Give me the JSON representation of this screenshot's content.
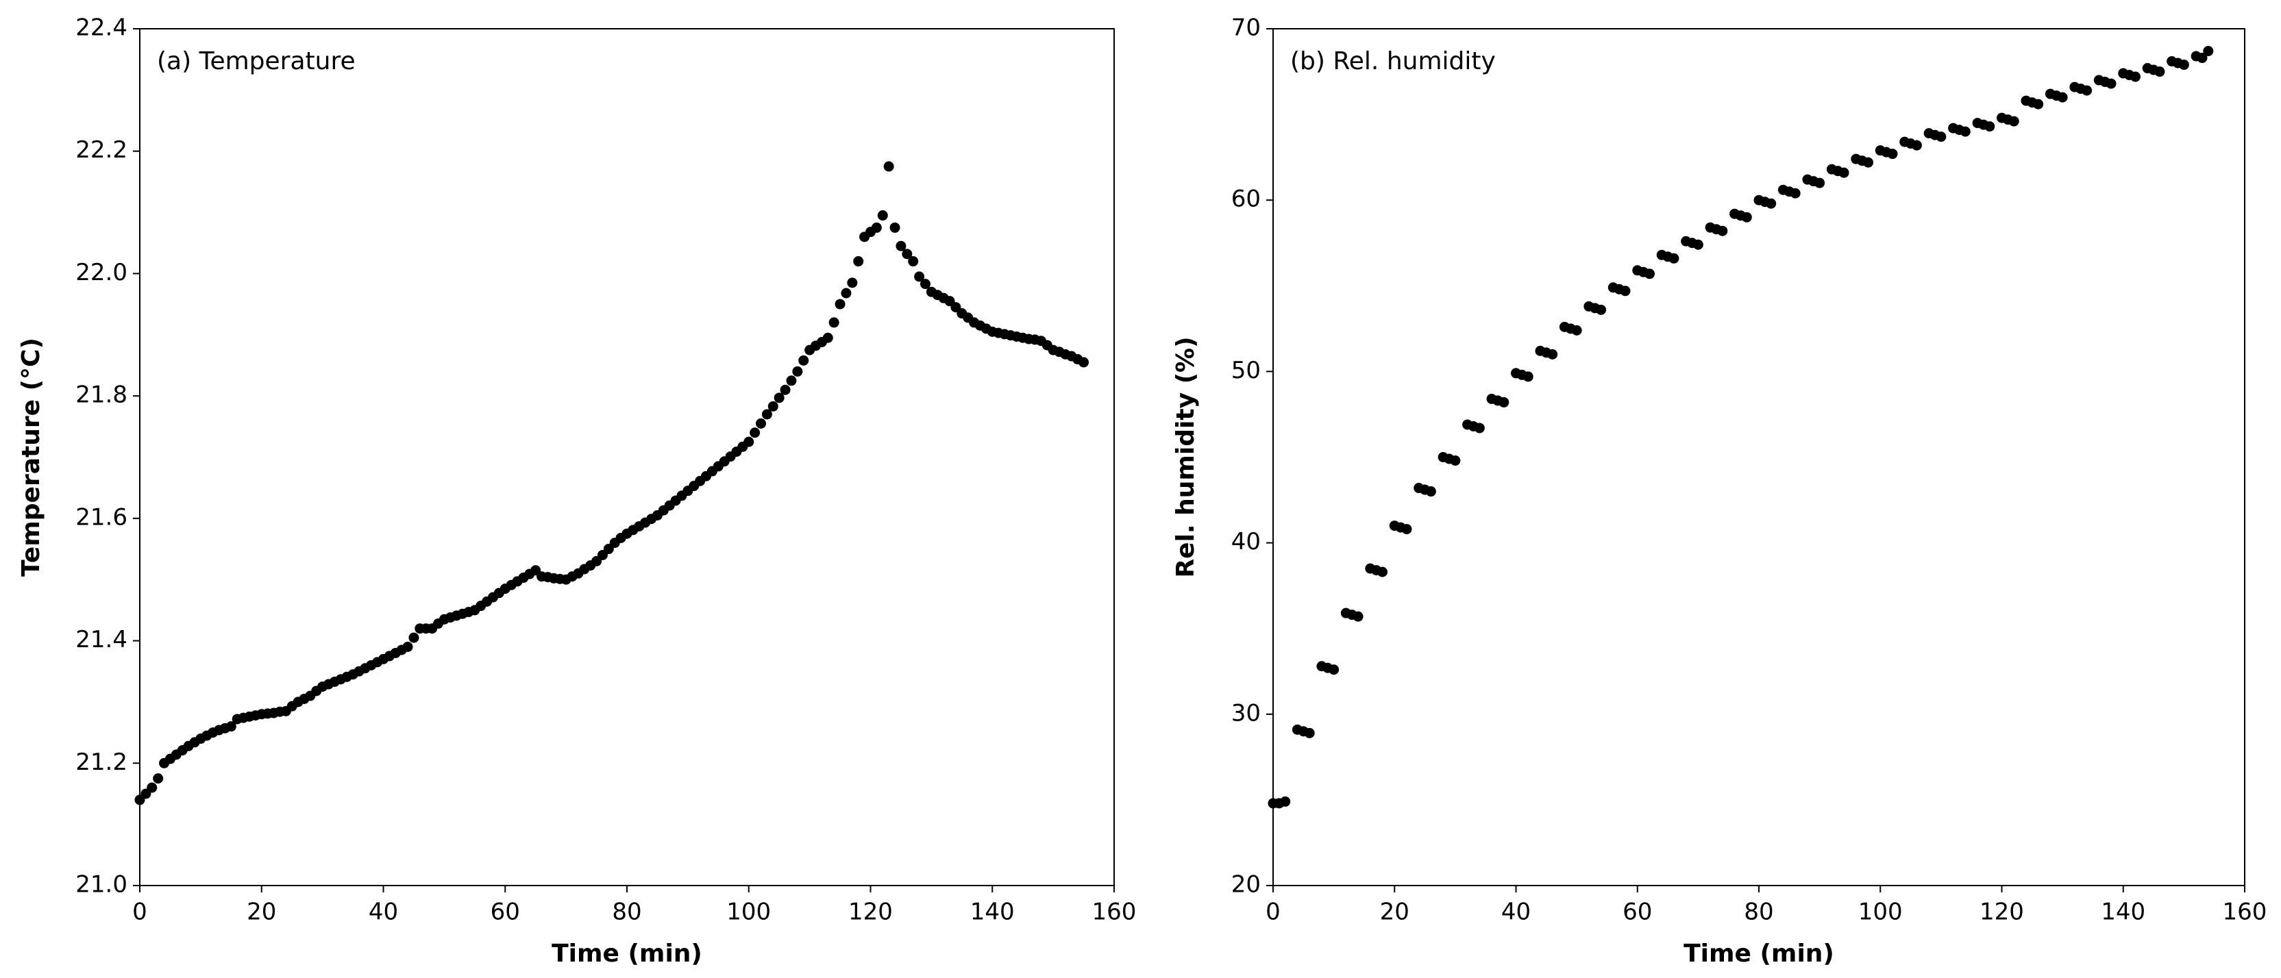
{
  "chart_data": [
    {
      "type": "scatter",
      "annotation": "(a) Temperature",
      "xlabel": "Time (min)",
      "ylabel": "Temperature (°C)",
      "color": "#000000",
      "xlim": [
        0,
        160
      ],
      "xticks": [
        0,
        20,
        40,
        60,
        80,
        100,
        120,
        140,
        160
      ],
      "ylim": [
        21.0,
        22.4
      ],
      "yticks": [
        {
          "value": 21.0,
          "label": "21.0"
        },
        21.2,
        21.4,
        21.6,
        21.8,
        {
          "value": 22.0,
          "label": "22.0"
        },
        22.2,
        22.4
      ],
      "x": [
        0,
        1,
        2,
        3,
        4,
        5,
        6,
        7,
        8,
        9,
        10,
        11,
        12,
        13,
        14,
        15,
        16,
        17,
        18,
        19,
        20,
        21,
        22,
        23,
        24,
        25,
        26,
        27,
        28,
        29,
        30,
        31,
        32,
        33,
        34,
        35,
        36,
        37,
        38,
        39,
        40,
        41,
        42,
        43,
        44,
        45,
        46,
        47,
        48,
        49,
        50,
        51,
        52,
        53,
        54,
        55,
        56,
        57,
        58,
        59,
        60,
        61,
        62,
        63,
        64,
        65,
        66,
        67,
        68,
        69,
        70,
        71,
        72,
        73,
        74,
        75,
        76,
        77,
        78,
        79,
        80,
        81,
        82,
        83,
        84,
        85,
        86,
        87,
        88,
        89,
        90,
        91,
        92,
        93,
        94,
        95,
        96,
        97,
        98,
        99,
        100,
        101,
        102,
        103,
        104,
        105,
        106,
        107,
        108,
        109,
        110,
        111,
        112,
        113,
        114,
        115,
        116,
        117,
        118,
        119,
        120,
        121,
        122,
        123,
        124,
        125,
        126,
        127,
        128,
        129,
        130,
        131,
        132,
        133,
        134,
        135,
        136,
        137,
        138,
        139,
        140,
        141,
        142,
        143,
        144,
        145,
        146,
        147,
        148,
        149,
        150,
        151,
        152,
        153,
        154,
        155
      ],
      "values": [
        21.14,
        21.15,
        21.16,
        21.175,
        21.2,
        21.207,
        21.214,
        21.221,
        21.228,
        21.234,
        21.24,
        21.245,
        21.25,
        21.254,
        21.257,
        21.26,
        21.272,
        21.274,
        21.276,
        21.278,
        21.28,
        21.281,
        21.282,
        21.284,
        21.285,
        21.293,
        21.3,
        21.305,
        21.31,
        21.318,
        21.325,
        21.329,
        21.333,
        21.337,
        21.341,
        21.345,
        21.35,
        21.355,
        21.36,
        21.365,
        21.37,
        21.375,
        21.38,
        21.385,
        21.39,
        21.405,
        21.42,
        21.42,
        21.42,
        21.428,
        21.435,
        21.438,
        21.441,
        21.444,
        21.447,
        21.45,
        21.457,
        21.464,
        21.471,
        21.478,
        21.485,
        21.491,
        21.497,
        21.503,
        21.509,
        21.515,
        21.505,
        21.504,
        21.502,
        21.501,
        21.5,
        21.505,
        21.51,
        21.517,
        21.523,
        21.53,
        21.54,
        21.55,
        21.56,
        21.568,
        21.575,
        21.581,
        21.587,
        21.593,
        21.599,
        21.605,
        21.613,
        21.621,
        21.629,
        21.637,
        21.645,
        21.653,
        21.661,
        21.669,
        21.677,
        21.685,
        21.693,
        21.701,
        21.709,
        21.717,
        21.725,
        21.74,
        21.755,
        21.77,
        21.783,
        21.797,
        21.81,
        21.825,
        21.84,
        21.858,
        21.875,
        21.882,
        21.888,
        21.895,
        21.92,
        21.95,
        21.968,
        21.985,
        22.02,
        22.06,
        22.068,
        22.075,
        22.095,
        22.175,
        22.075,
        22.045,
        22.032,
        22.02,
        21.995,
        21.983,
        21.97,
        21.965,
        21.96,
        21.955,
        21.945,
        21.935,
        21.928,
        21.92,
        21.915,
        21.91,
        21.905,
        21.903,
        21.901,
        21.899,
        21.897,
        21.895,
        21.893,
        21.892,
        21.89,
        21.883,
        21.875,
        21.872,
        21.868,
        21.865,
        21.86,
        21.855
      ]
    },
    {
      "type": "scatter",
      "annotation": "(b) Rel. humidity",
      "xlabel": "Time (min)",
      "ylabel": "Rel. humidity (%)",
      "color": "#000000",
      "xlim": [
        0,
        160
      ],
      "xticks": [
        0,
        20,
        40,
        60,
        80,
        100,
        120,
        140,
        160
      ],
      "ylim": [
        20,
        70
      ],
      "yticks": [
        20,
        30,
        40,
        50,
        60,
        70
      ],
      "x": [
        0,
        1,
        2,
        4,
        5,
        6,
        8,
        9,
        10,
        12,
        13,
        14,
        16,
        17,
        18,
        20,
        21,
        22,
        24,
        25,
        26,
        28,
        29,
        30,
        32,
        33,
        34,
        36,
        37,
        38,
        40,
        41,
        42,
        44,
        45,
        46,
        48,
        49,
        50,
        52,
        53,
        54,
        56,
        57,
        58,
        60,
        61,
        62,
        64,
        65,
        66,
        68,
        69,
        70,
        72,
        73,
        74,
        76,
        77,
        78,
        80,
        81,
        82,
        84,
        85,
        86,
        88,
        89,
        90,
        92,
        93,
        94,
        96,
        97,
        98,
        100,
        101,
        102,
        104,
        105,
        106,
        108,
        109,
        110,
        112,
        113,
        114,
        116,
        117,
        118,
        120,
        121,
        122,
        124,
        125,
        126,
        128,
        129,
        130,
        132,
        133,
        134,
        136,
        137,
        138,
        140,
        141,
        142,
        144,
        145,
        146,
        148,
        149,
        150,
        152,
        153,
        154
      ],
      "values": [
        24.8,
        24.8,
        24.9,
        29.1,
        29.0,
        28.9,
        32.8,
        32.7,
        32.6,
        35.9,
        35.8,
        35.7,
        38.5,
        38.4,
        38.3,
        41.0,
        40.9,
        40.8,
        43.2,
        43.1,
        43.0,
        45.0,
        44.9,
        44.8,
        46.9,
        46.8,
        46.7,
        48.4,
        48.3,
        48.2,
        49.9,
        49.8,
        49.7,
        51.2,
        51.1,
        51.0,
        52.6,
        52.5,
        52.4,
        53.8,
        53.7,
        53.6,
        54.9,
        54.8,
        54.7,
        55.9,
        55.8,
        55.7,
        56.8,
        56.7,
        56.6,
        57.6,
        57.5,
        57.4,
        58.4,
        58.3,
        58.2,
        59.2,
        59.1,
        59.0,
        60.0,
        59.9,
        59.8,
        60.6,
        60.5,
        60.4,
        61.2,
        61.1,
        61.0,
        61.8,
        61.7,
        61.6,
        62.4,
        62.3,
        62.2,
        62.9,
        62.8,
        62.7,
        63.4,
        63.3,
        63.2,
        63.9,
        63.8,
        63.7,
        64.2,
        64.1,
        64.0,
        64.5,
        64.4,
        64.3,
        64.8,
        64.7,
        64.6,
        65.8,
        65.7,
        65.6,
        66.2,
        66.1,
        66.0,
        66.6,
        66.5,
        66.4,
        67.0,
        66.9,
        66.8,
        67.4,
        67.3,
        67.2,
        67.7,
        67.6,
        67.5,
        68.1,
        68.0,
        67.9,
        68.4,
        68.3,
        68.7
      ]
    }
  ]
}
